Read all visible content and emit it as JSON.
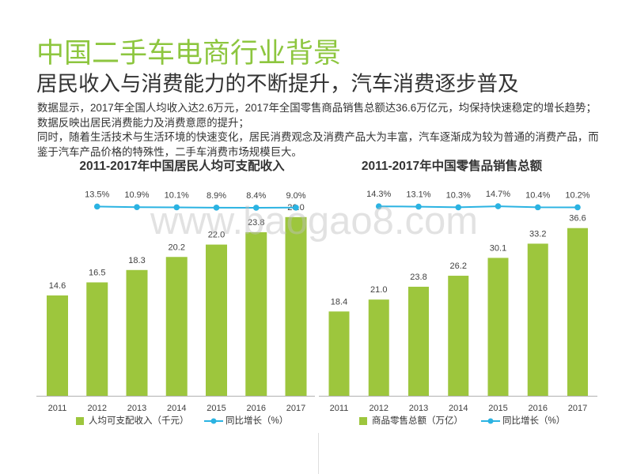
{
  "slide": {
    "title": "中国二手车电商行业背景",
    "subtitle": "居民收入与消费能力的不断提升，汽车消费逐步普及",
    "paragraph": [
      "数据显示，2017年全国人均收入达2.6万元，2017年全国零售商品销售总额达36.6万亿元，均保持快速稳定的增长趋势；",
      "数据反映出居民消费能力及消费意愿的提升；",
      "同时，随着生活技术与生活环境的快速变化，居民消费观念及消费产品大为丰富，汽车逐渐成为较为普通的消费产品，而",
      "鉴于汽车产品价格的特殊性，二手车消费市场规模巨大。"
    ],
    "watermark": "www.baogao8.com"
  },
  "colors": {
    "title": "#8dc63f",
    "bar": "#9dc63d",
    "line": "#2bb3e2",
    "text": "#333333",
    "axis": "#b0b0b0"
  },
  "chart_data": [
    {
      "type": "bar",
      "title": "2011-2017年中国居民人均可支配收入",
      "categories": [
        "2011",
        "2012",
        "2013",
        "2014",
        "2015",
        "2016",
        "2017"
      ],
      "series": [
        {
          "name": "人均可支配收入（千元）",
          "type": "bar",
          "values": [
            14.6,
            16.5,
            18.3,
            20.2,
            22.0,
            23.8,
            26.0
          ],
          "labels": [
            "14.6",
            "16.5",
            "18.3",
            "20.2",
            "22.0",
            "23.8",
            "26.0"
          ]
        },
        {
          "name": "同比增长（%）",
          "type": "line",
          "x": [
            "2012",
            "2013",
            "2014",
            "2015",
            "2016",
            "2017"
          ],
          "values": [
            13.5,
            10.9,
            10.1,
            8.9,
            8.4,
            9.0
          ],
          "labels": [
            "13.5%",
            "10.9%",
            "10.1%",
            "8.9%",
            "8.4%",
            "9.0%"
          ]
        }
      ],
      "ylim": [
        0,
        30
      ],
      "grid": false,
      "legend": "bottom"
    },
    {
      "type": "bar",
      "title": "2011-2017年中国零售品销售总额",
      "categories": [
        "2011",
        "2012",
        "2013",
        "2014",
        "2015",
        "2016",
        "2017"
      ],
      "series": [
        {
          "name": "商品零售总额（万亿）",
          "type": "bar",
          "values": [
            18.4,
            21.0,
            23.8,
            26.2,
            30.1,
            33.2,
            36.6
          ],
          "labels": [
            "18.4",
            "21.0",
            "23.8",
            "26.2",
            "30.1",
            "33.2",
            "36.6"
          ]
        },
        {
          "name": "同比增长（%）",
          "type": "line",
          "x": [
            "2012",
            "2013",
            "2014",
            "2015",
            "2016",
            "2017"
          ],
          "values": [
            14.3,
            13.1,
            10.3,
            14.7,
            10.4,
            10.2
          ],
          "labels": [
            "14.3%",
            "13.1%",
            "10.3%",
            "14.7%",
            "10.4%",
            "10.2%"
          ]
        }
      ],
      "ylim": [
        0,
        45
      ],
      "grid": false,
      "legend": "bottom"
    }
  ]
}
